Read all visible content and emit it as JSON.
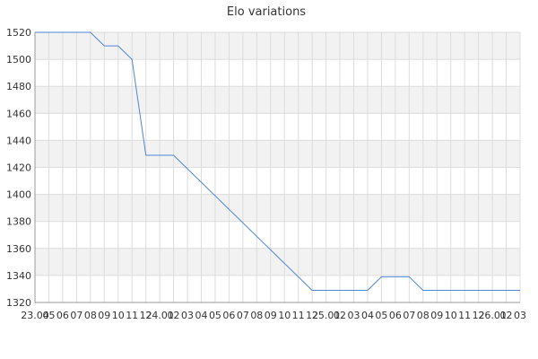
{
  "chart_data": {
    "type": "line",
    "title": "Elo variations",
    "xlabel": "",
    "ylabel": "",
    "ylim": [
      1320,
      1520
    ],
    "yticks": [
      1320,
      1340,
      1360,
      1380,
      1400,
      1420,
      1440,
      1460,
      1480,
      1500,
      1520
    ],
    "xtick_labels": [
      "23.04",
      "05",
      "06",
      "07",
      "08",
      "09",
      "10",
      "11",
      "12",
      "24.01",
      "02",
      "03",
      "04",
      "05",
      "06",
      "07",
      "08",
      "09",
      "10",
      "11",
      "12",
      "25.01",
      "02",
      "03",
      "04",
      "05",
      "06",
      "07",
      "08",
      "09",
      "10",
      "11",
      "12",
      "26.01",
      "02",
      "03"
    ],
    "grid": true,
    "legend": "none",
    "colors": {
      "line": "#4f86d8",
      "band": "#f2f2f2",
      "grid": "#dcdcdc",
      "axis": "#999999"
    },
    "series": [
      {
        "values": [
          [
            0,
            1520
          ],
          [
            1,
            1520
          ],
          [
            2,
            1520
          ],
          [
            3,
            1520
          ],
          [
            4,
            1520
          ],
          [
            5,
            1510
          ],
          [
            6,
            1510
          ],
          [
            7,
            1500
          ],
          [
            8,
            1429
          ],
          [
            9,
            1429
          ],
          [
            10,
            1429
          ],
          [
            20,
            1329
          ],
          [
            21,
            1329
          ],
          [
            22,
            1329
          ],
          [
            23,
            1329
          ],
          [
            24,
            1329
          ],
          [
            25,
            1339
          ],
          [
            26,
            1339
          ],
          [
            27,
            1339
          ],
          [
            28,
            1329
          ],
          [
            35,
            1329
          ]
        ]
      }
    ]
  }
}
